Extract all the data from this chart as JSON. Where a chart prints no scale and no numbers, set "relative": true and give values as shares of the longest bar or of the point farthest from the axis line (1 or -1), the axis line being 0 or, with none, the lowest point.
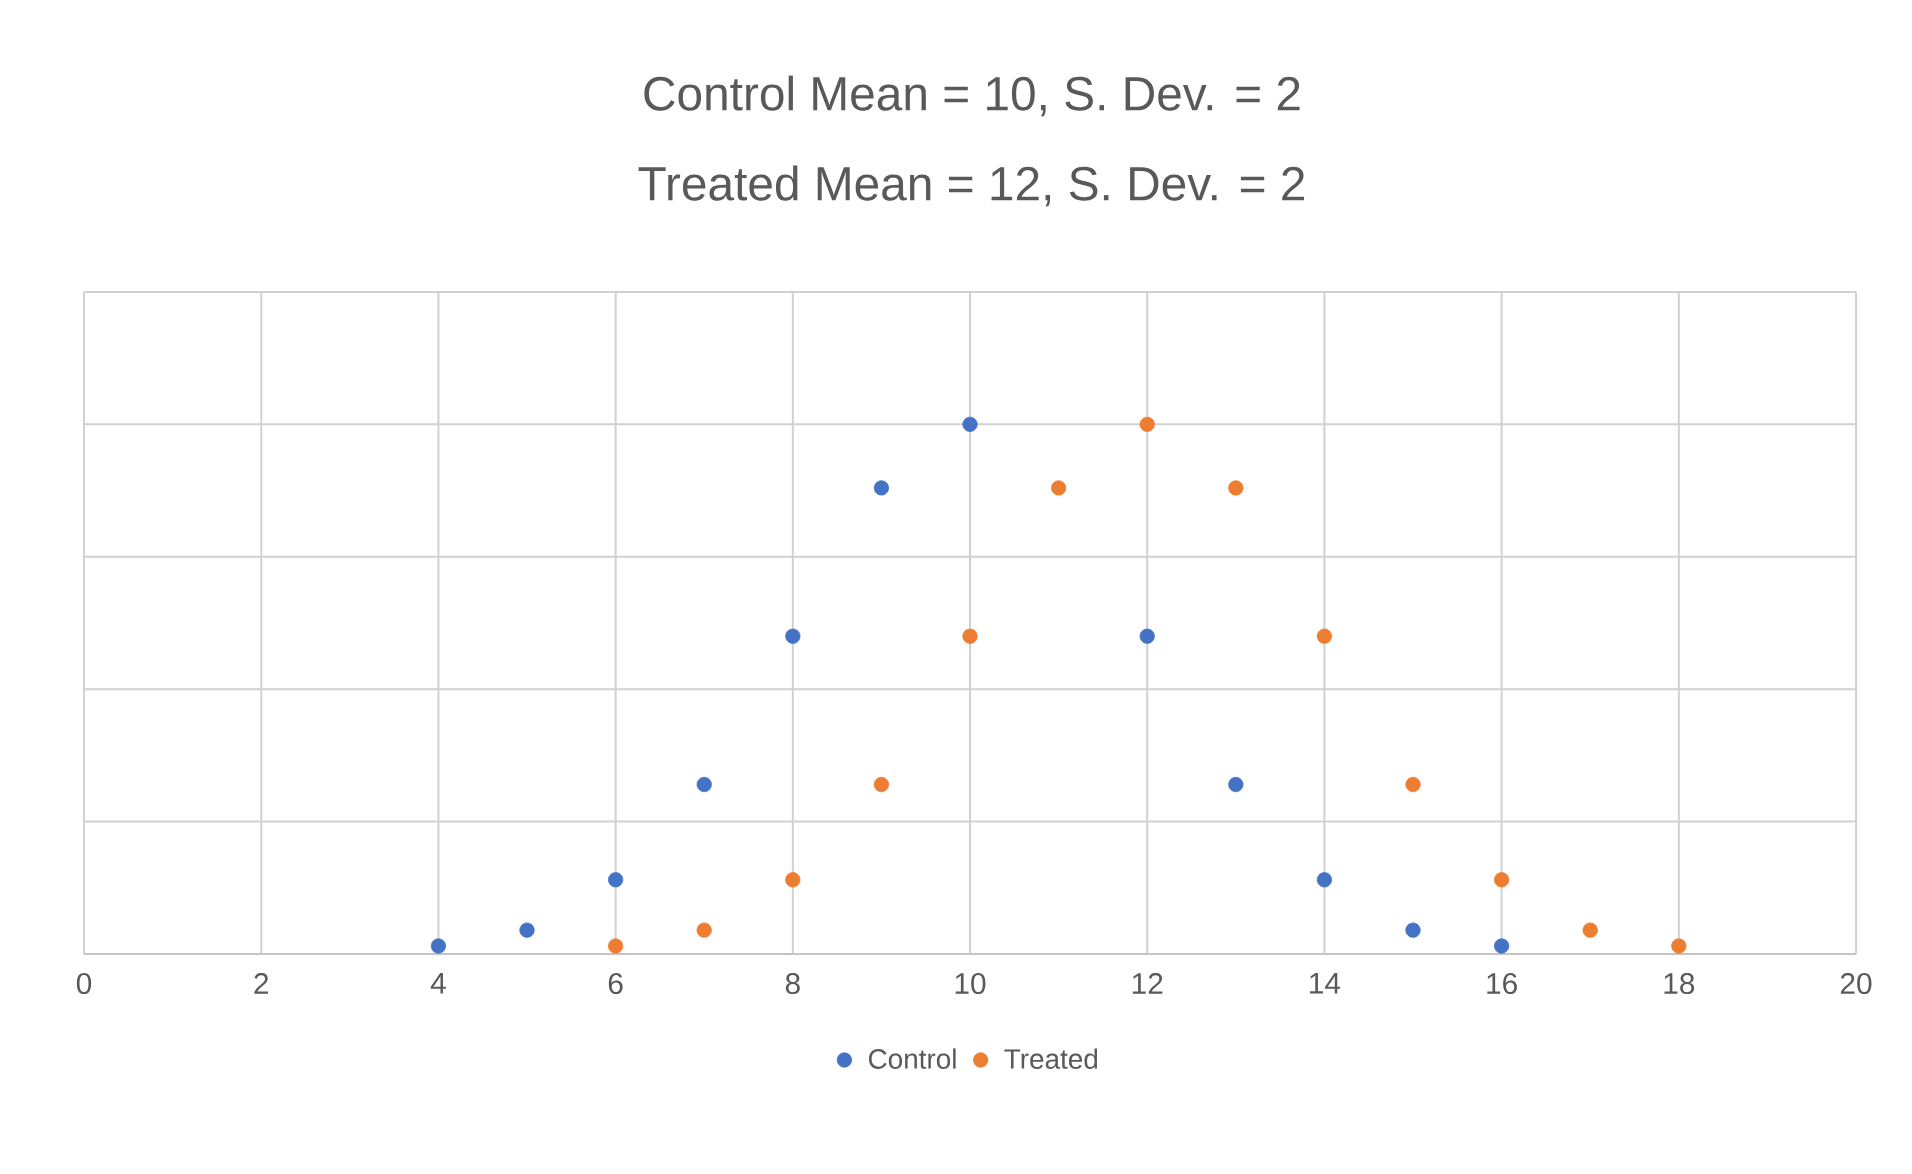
{
  "chart_data": {
    "type": "scatter",
    "title": "Control Mean = 10, S. Dev. = 2",
    "subtitle": "Treated Mean = 12, S. Dev. = 2",
    "relative": true,
    "xlim": [
      0,
      20
    ],
    "xticks": [
      0,
      2,
      4,
      6,
      8,
      10,
      12,
      14,
      16,
      18,
      20
    ],
    "grid": true,
    "legend": "bottom",
    "marker": "circle",
    "tick_labels": "x",
    "series": [
      {
        "name": "Control",
        "color": "#4472c4",
        "x": [
          4,
          5,
          6,
          7,
          8,
          9,
          10,
          11,
          12,
          13,
          14,
          15,
          16
        ],
        "values": [
          0.015,
          0.045,
          0.14,
          0.32,
          0.6,
          0.88,
          1,
          null,
          0.6,
          0.32,
          0.14,
          0.045,
          0.015
        ]
      },
      {
        "name": "Treated",
        "color": "#ed7d31",
        "x": [
          6,
          7,
          8,
          9,
          10,
          11,
          12,
          13,
          14,
          15,
          16,
          17,
          18
        ],
        "values": [
          0.015,
          0.045,
          0.14,
          0.32,
          0.6,
          0.88,
          1,
          0.88,
          0.6,
          0.32,
          0.14,
          0.045,
          0.015
        ]
      }
    ]
  }
}
